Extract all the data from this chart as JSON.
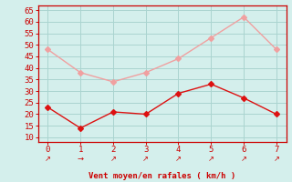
{
  "x": [
    0,
    1,
    2,
    3,
    4,
    5,
    6,
    7
  ],
  "y_rafales": [
    48,
    38,
    34,
    38,
    44,
    53,
    62,
    48
  ],
  "y_moyen": [
    23,
    14,
    21,
    20,
    29,
    33,
    27,
    20
  ],
  "color_rafales": "#f0a0a0",
  "color_moyen": "#dd1111",
  "bg_color": "#d4efec",
  "grid_color": "#aad4d0",
  "axis_color": "#cc0000",
  "xlabel": "Vent moyen/en rafales ( km/h )",
  "xlabel_color": "#cc0000",
  "tick_color": "#cc0000",
  "ylim": [
    8,
    67
  ],
  "yticks": [
    10,
    15,
    20,
    25,
    30,
    35,
    40,
    45,
    50,
    55,
    60,
    65
  ],
  "xlim": [
    -0.3,
    7.3
  ],
  "xticks": [
    0,
    1,
    2,
    3,
    4,
    5,
    6,
    7
  ],
  "arrows": [
    "↗",
    "→",
    "↗",
    "↗",
    "↗",
    "↗",
    "↗",
    "↗"
  ],
  "markersize": 3,
  "linewidth": 1.0
}
